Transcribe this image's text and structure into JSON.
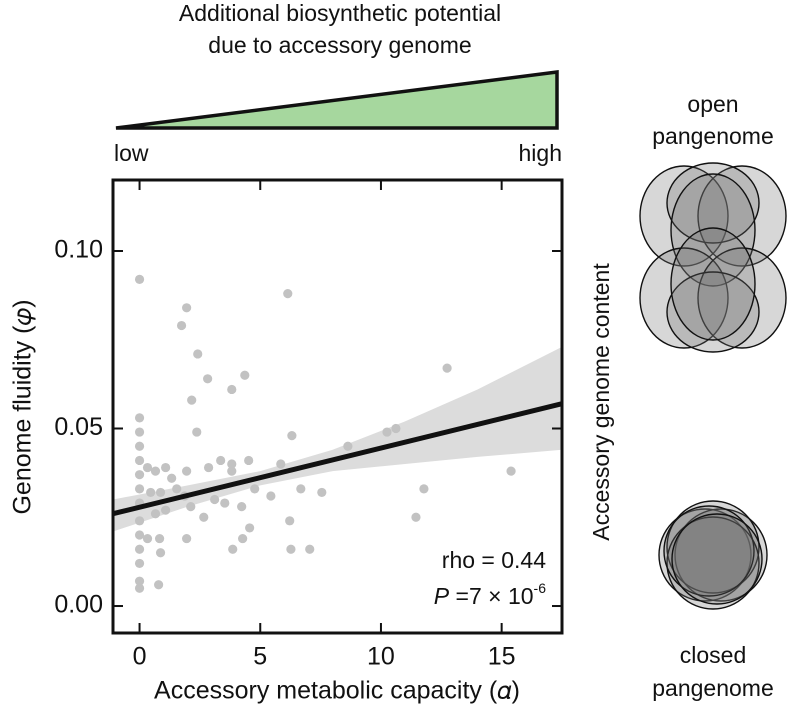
{
  "chart_data": {
    "type": "scatter",
    "x_label": "Accessory metabolic capacity (𝛼)",
    "y_label": "Genome fluidity (𝜑)",
    "xlim": [
      -1.1,
      17.5
    ],
    "ylim": [
      -0.0076,
      0.12
    ],
    "xticks": [
      0,
      5,
      10,
      15
    ],
    "yticks": [
      {
        "value": 0,
        "label": "0.00"
      },
      {
        "value": 0.05,
        "label": "0.05"
      },
      {
        "value": 0.1,
        "label": "0.10"
      }
    ],
    "series": [
      {
        "color": "#c2c2c2",
        "x": [
          0,
          1.95,
          1.74,
          6.14,
          2.41,
          2.82,
          2.16,
          4.36,
          3.82,
          12.74,
          0,
          0,
          0,
          0,
          0,
          0,
          0,
          0,
          0,
          0,
          0,
          0,
          0,
          2.37,
          6.31,
          8.63,
          10.25,
          10.62,
          15.39,
          11.78,
          11.45,
          7.55,
          6.68,
          5.85,
          4.52,
          3.82,
          3.82,
          3.36,
          2.86,
          1.95,
          1.33,
          1.08,
          0.66,
          0.33,
          0.46,
          0.87,
          1.54,
          1.87,
          2.12,
          2.66,
          3.11,
          3.53,
          4.23,
          4.77,
          6.22,
          6.27,
          7.05,
          4.56,
          3.86,
          4.27,
          1.95,
          1.08,
          0.83,
          0.87,
          0.33,
          0.79,
          0.66,
          5.44
        ],
        "values": [
          0.092,
          0.084,
          0.079,
          0.088,
          0.071,
          0.064,
          0.058,
          0.065,
          0.061,
          0.067,
          0.053,
          0.049,
          0.045,
          0.041,
          0.037,
          0.033,
          0.029,
          0.024,
          0.02,
          0.016,
          0.012,
          0.007,
          0.005,
          0.049,
          0.048,
          0.045,
          0.049,
          0.05,
          0.038,
          0.033,
          0.025,
          0.032,
          0.033,
          0.04,
          0.041,
          0.04,
          0.038,
          0.041,
          0.039,
          0.038,
          0.036,
          0.039,
          0.038,
          0.039,
          0.032,
          0.032,
          0.033,
          0.031,
          0.028,
          0.025,
          0.03,
          0.029,
          0.028,
          0.033,
          0.024,
          0.016,
          0.016,
          0.022,
          0.016,
          0.019,
          0.019,
          0.027,
          0.019,
          0.015,
          0.019,
          0.006,
          0.026,
          0.031
        ]
      }
    ],
    "fit": {
      "color": "#111111",
      "x": [
        -1.1,
        17.5
      ],
      "values": [
        0.026,
        0.057
      ]
    },
    "band": {
      "color": "#dcdcdc",
      "x": [
        -1.1,
        2,
        5,
        8,
        11,
        14,
        17.5
      ],
      "upper": [
        0.03,
        0.034,
        0.038,
        0.044,
        0.052,
        0.061,
        0.073
      ],
      "lower": [
        0.021,
        0.028,
        0.034,
        0.038,
        0.04,
        0.042,
        0.044
      ]
    },
    "annotations": {
      "rho": "rho = 0.44",
      "p_symbol": "P",
      "p_text": " =7 × 10",
      "p_exponent": "-6"
    }
  },
  "gradient": {
    "title": [
      "Additional biosynthetic potential",
      "due to accessory genome"
    ],
    "low": "low",
    "high": "high"
  },
  "venn": {
    "axis_label": "Accessory genome content",
    "open": [
      "open",
      "pangenome"
    ],
    "closed": [
      "closed",
      "pangenome"
    ]
  }
}
